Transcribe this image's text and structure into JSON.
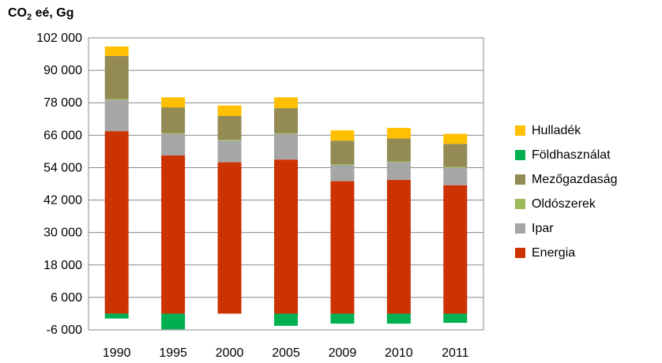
{
  "unit_label": {
    "prefix": "CO",
    "sub": "2",
    "suffix": " eé, Gg"
  },
  "chart_data": {
    "type": "bar",
    "stacked": true,
    "categories": [
      "1990",
      "1995",
      "2000",
      "2005",
      "2009",
      "2010",
      "2011"
    ],
    "y_tick_labels": [
      "-6 000",
      "6 000",
      "18 000",
      "30 000",
      "42 000",
      "54 000",
      "66 000",
      "78 000",
      "90 000",
      "102 000"
    ],
    "ylim": [
      -6000,
      102000
    ],
    "grid": true,
    "legend_position": "right",
    "series": [
      {
        "name": "Energia",
        "color": "#CC3300",
        "values": [
          67500,
          58500,
          56000,
          57000,
          49000,
          49500,
          47500
        ]
      },
      {
        "name": "Ipar",
        "color": "#A6A6A6",
        "values": [
          11500,
          8000,
          8000,
          9500,
          6000,
          6500,
          6500
        ]
      },
      {
        "name": "Oldószerek",
        "color": "#9BBB59",
        "values": [
          300,
          300,
          300,
          300,
          300,
          300,
          300
        ]
      },
      {
        "name": "Mezőgazdaság",
        "color": "#948A54",
        "values": [
          16000,
          9500,
          8800,
          9200,
          8700,
          8500,
          8500
        ]
      },
      {
        "name": "Földhasználat",
        "color": "#00B050",
        "values": [
          -1800,
          -5800,
          0,
          -4500,
          -3700,
          -3700,
          -3400
        ]
      },
      {
        "name": "Hulladék",
        "color": "#FFC000",
        "values": [
          3500,
          3700,
          3900,
          4000,
          3800,
          3900,
          3700
        ]
      }
    ]
  }
}
